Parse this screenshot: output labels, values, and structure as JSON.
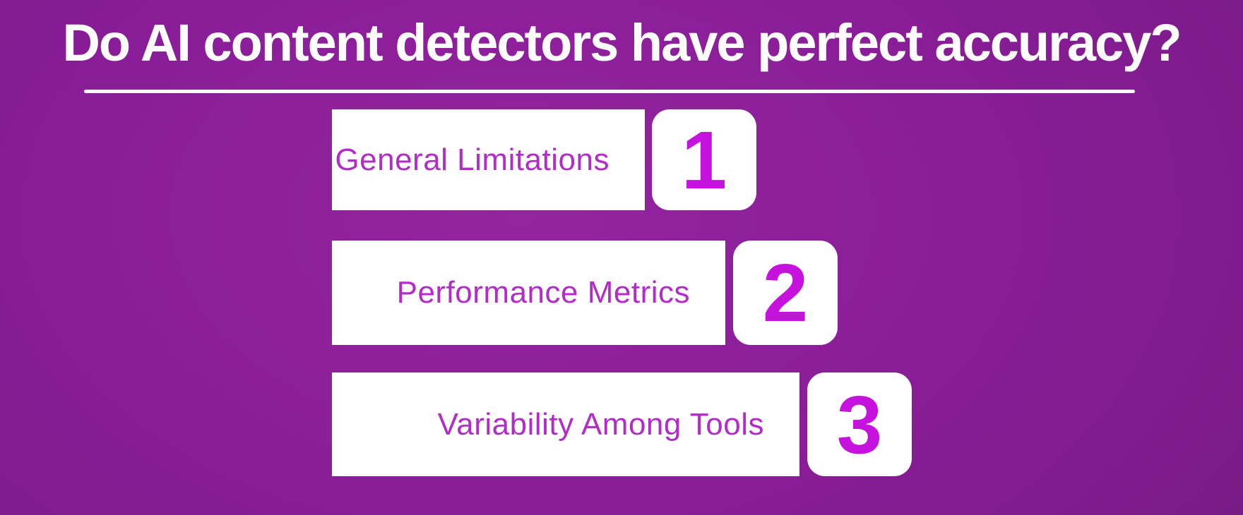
{
  "title": "Do AI content detectors have perfect accuracy?",
  "list": {
    "items": [
      {
        "label": "General Limitations",
        "number": "1"
      },
      {
        "label": "Performance Metrics",
        "number": "2"
      },
      {
        "label": "Variability Among Tools",
        "number": "3"
      }
    ]
  },
  "colors": {
    "background_center": "#93259f",
    "background_edge": "#701a7f",
    "title_text": "#fdfcfd",
    "underline": "#ffffff",
    "box_background": "#ffffff",
    "label_text": "#b22cc8",
    "number_text": "#c513dd"
  }
}
